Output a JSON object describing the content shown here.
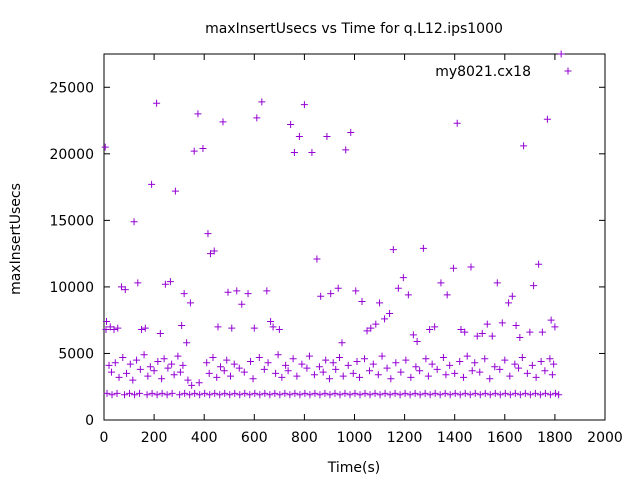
{
  "chart_data": {
    "type": "scatter",
    "title": "maxInsertUsecs vs Time for q.L12.ips1000",
    "xlabel": "Time(s)",
    "ylabel": "maxInsertUsecs",
    "xlim": [
      0,
      2000
    ],
    "ylim": [
      0,
      27500
    ],
    "xticks": [
      0,
      200,
      400,
      600,
      800,
      1000,
      1200,
      1400,
      1600,
      1800,
      2000
    ],
    "yticks": [
      0,
      5000,
      10000,
      15000,
      20000,
      25000
    ],
    "grid": false,
    "legend_position": "top-right",
    "marker": "plus",
    "series": [
      {
        "name": "my8021.cx18",
        "color": "#9400d3",
        "points": [
          [
            5,
            20500
          ],
          [
            10,
            7400
          ],
          [
            8,
            6800
          ],
          [
            25,
            7000
          ],
          [
            40,
            6800
          ],
          [
            55,
            6900
          ],
          [
            70,
            10000
          ],
          [
            85,
            9800
          ],
          [
            120,
            14900
          ],
          [
            135,
            10300
          ],
          [
            150,
            6800
          ],
          [
            165,
            6900
          ],
          [
            190,
            17700
          ],
          [
            210,
            23800
          ],
          [
            225,
            6500
          ],
          [
            245,
            10200
          ],
          [
            265,
            10400
          ],
          [
            285,
            17200
          ],
          [
            310,
            7100
          ],
          [
            320,
            9500
          ],
          [
            330,
            5800
          ],
          [
            345,
            8800
          ],
          [
            360,
            20200
          ],
          [
            375,
            23000
          ],
          [
            395,
            20400
          ],
          [
            415,
            14000
          ],
          [
            425,
            12500
          ],
          [
            440,
            12700
          ],
          [
            455,
            7000
          ],
          [
            475,
            22400
          ],
          [
            495,
            9600
          ],
          [
            510,
            6900
          ],
          [
            530,
            9700
          ],
          [
            550,
            8700
          ],
          [
            575,
            9500
          ],
          [
            600,
            6900
          ],
          [
            610,
            22700
          ],
          [
            630,
            23900
          ],
          [
            650,
            9700
          ],
          [
            665,
            7400
          ],
          [
            675,
            7000
          ],
          [
            700,
            6800
          ],
          [
            745,
            22200
          ],
          [
            760,
            20100
          ],
          [
            780,
            21300
          ],
          [
            800,
            23700
          ],
          [
            830,
            20100
          ],
          [
            850,
            12100
          ],
          [
            865,
            9300
          ],
          [
            890,
            21300
          ],
          [
            905,
            9500
          ],
          [
            935,
            9900
          ],
          [
            950,
            5800
          ],
          [
            965,
            20300
          ],
          [
            985,
            21600
          ],
          [
            1005,
            9700
          ],
          [
            1030,
            8900
          ],
          [
            1050,
            6700
          ],
          [
            1065,
            6900
          ],
          [
            1085,
            7200
          ],
          [
            1100,
            8800
          ],
          [
            1120,
            7600
          ],
          [
            1140,
            8000
          ],
          [
            1155,
            12800
          ],
          [
            1175,
            9900
          ],
          [
            1195,
            10700
          ],
          [
            1215,
            9400
          ],
          [
            1235,
            6400
          ],
          [
            1250,
            5900
          ],
          [
            1275,
            12900
          ],
          [
            1300,
            6800
          ],
          [
            1320,
            7000
          ],
          [
            1345,
            10300
          ],
          [
            1370,
            9400
          ],
          [
            1395,
            11400
          ],
          [
            1410,
            22300
          ],
          [
            1425,
            6800
          ],
          [
            1440,
            6600
          ],
          [
            1465,
            11500
          ],
          [
            1490,
            6300
          ],
          [
            1510,
            6500
          ],
          [
            1530,
            7200
          ],
          [
            1550,
            6300
          ],
          [
            1570,
            10300
          ],
          [
            1590,
            7300
          ],
          [
            1615,
            8800
          ],
          [
            1630,
            9300
          ],
          [
            1645,
            7100
          ],
          [
            1660,
            6200
          ],
          [
            1675,
            20600
          ],
          [
            1700,
            6600
          ],
          [
            1715,
            10100
          ],
          [
            1735,
            11700
          ],
          [
            1750,
            6600
          ],
          [
            1770,
            22600
          ],
          [
            1785,
            7500
          ],
          [
            1800,
            7000
          ],
          [
            1825,
            27500
          ],
          [
            20,
            4100
          ],
          [
            30,
            3600
          ],
          [
            45,
            4300
          ],
          [
            60,
            3200
          ],
          [
            75,
            4700
          ],
          [
            90,
            3500
          ],
          [
            105,
            4200
          ],
          [
            115,
            3000
          ],
          [
            130,
            4500
          ],
          [
            145,
            3800
          ],
          [
            160,
            4900
          ],
          [
            175,
            3300
          ],
          [
            185,
            4000
          ],
          [
            200,
            3700
          ],
          [
            215,
            4400
          ],
          [
            230,
            3100
          ],
          [
            240,
            4600
          ],
          [
            255,
            3900
          ],
          [
            270,
            4200
          ],
          [
            280,
            3400
          ],
          [
            295,
            4800
          ],
          [
            305,
            3600
          ],
          [
            315,
            4100
          ],
          [
            335,
            3000
          ],
          [
            350,
            2600
          ],
          [
            380,
            2800
          ],
          [
            410,
            4300
          ],
          [
            420,
            3500
          ],
          [
            435,
            4700
          ],
          [
            450,
            3200
          ],
          [
            465,
            4000
          ],
          [
            480,
            3700
          ],
          [
            490,
            4500
          ],
          [
            505,
            3300
          ],
          [
            520,
            4200
          ],
          [
            540,
            3900
          ],
          [
            560,
            3600
          ],
          [
            585,
            4400
          ],
          [
            595,
            3100
          ],
          [
            620,
            4700
          ],
          [
            640,
            3800
          ],
          [
            655,
            4300
          ],
          [
            685,
            3500
          ],
          [
            695,
            4900
          ],
          [
            710,
            3200
          ],
          [
            725,
            4100
          ],
          [
            735,
            3700
          ],
          [
            755,
            4600
          ],
          [
            770,
            3300
          ],
          [
            790,
            4200
          ],
          [
            810,
            3900
          ],
          [
            820,
            4800
          ],
          [
            840,
            3400
          ],
          [
            860,
            4000
          ],
          [
            875,
            3600
          ],
          [
            885,
            4500
          ],
          [
            900,
            3100
          ],
          [
            915,
            4300
          ],
          [
            925,
            3800
          ],
          [
            940,
            4700
          ],
          [
            955,
            3300
          ],
          [
            975,
            4100
          ],
          [
            995,
            3500
          ],
          [
            1010,
            4400
          ],
          [
            1020,
            3200
          ],
          [
            1040,
            4600
          ],
          [
            1060,
            3700
          ],
          [
            1075,
            4200
          ],
          [
            1095,
            3400
          ],
          [
            1110,
            4800
          ],
          [
            1130,
            3900
          ],
          [
            1145,
            3100
          ],
          [
            1165,
            4300
          ],
          [
            1185,
            3600
          ],
          [
            1205,
            4500
          ],
          [
            1225,
            3200
          ],
          [
            1245,
            4000
          ],
          [
            1260,
            3700
          ],
          [
            1285,
            4600
          ],
          [
            1295,
            3300
          ],
          [
            1310,
            4200
          ],
          [
            1330,
            3800
          ],
          [
            1355,
            4700
          ],
          [
            1365,
            3400
          ],
          [
            1380,
            4100
          ],
          [
            1400,
            3500
          ],
          [
            1420,
            4400
          ],
          [
            1435,
            3200
          ],
          [
            1450,
            4800
          ],
          [
            1470,
            3700
          ],
          [
            1480,
            4300
          ],
          [
            1500,
            3600
          ],
          [
            1520,
            4600
          ],
          [
            1540,
            3100
          ],
          [
            1560,
            4000
          ],
          [
            1580,
            3800
          ],
          [
            1600,
            4500
          ],
          [
            1620,
            3300
          ],
          [
            1640,
            4200
          ],
          [
            1655,
            3900
          ],
          [
            1670,
            4700
          ],
          [
            1690,
            3500
          ],
          [
            1710,
            4100
          ],
          [
            1725,
            3200
          ],
          [
            1745,
            4400
          ],
          [
            1760,
            3700
          ],
          [
            1780,
            4600
          ],
          [
            1790,
            3400
          ],
          [
            1795,
            4200
          ],
          [
            12,
            2000
          ],
          [
            32,
            1900
          ],
          [
            52,
            2000
          ],
          [
            82,
            1900
          ],
          [
            102,
            2000
          ],
          [
            122,
            1900
          ],
          [
            142,
            2000
          ],
          [
            172,
            1900
          ],
          [
            192,
            2000
          ],
          [
            212,
            1900
          ],
          [
            232,
            2000
          ],
          [
            252,
            1900
          ],
          [
            272,
            2000
          ],
          [
            302,
            1900
          ],
          [
            322,
            2000
          ],
          [
            342,
            1900
          ],
          [
            362,
            2000
          ],
          [
            382,
            1900
          ],
          [
            402,
            2000
          ],
          [
            422,
            1900
          ],
          [
            442,
            2000
          ],
          [
            462,
            1900
          ],
          [
            482,
            2000
          ],
          [
            502,
            1900
          ],
          [
            522,
            2000
          ],
          [
            542,
            1900
          ],
          [
            562,
            2000
          ],
          [
            582,
            1900
          ],
          [
            602,
            2000
          ],
          [
            622,
            1900
          ],
          [
            642,
            2000
          ],
          [
            662,
            1900
          ],
          [
            682,
            2000
          ],
          [
            702,
            1900
          ],
          [
            722,
            2000
          ],
          [
            742,
            1900
          ],
          [
            762,
            2000
          ],
          [
            782,
            1900
          ],
          [
            802,
            2000
          ],
          [
            822,
            1900
          ],
          [
            842,
            2000
          ],
          [
            862,
            1900
          ],
          [
            882,
            2000
          ],
          [
            902,
            1900
          ],
          [
            922,
            2000
          ],
          [
            942,
            1900
          ],
          [
            962,
            2000
          ],
          [
            982,
            1900
          ],
          [
            1002,
            2000
          ],
          [
            1022,
            1900
          ],
          [
            1042,
            2000
          ],
          [
            1062,
            1900
          ],
          [
            1082,
            2000
          ],
          [
            1102,
            1900
          ],
          [
            1122,
            2000
          ],
          [
            1142,
            1900
          ],
          [
            1162,
            2000
          ],
          [
            1182,
            1900
          ],
          [
            1202,
            2000
          ],
          [
            1222,
            1900
          ],
          [
            1242,
            2000
          ],
          [
            1262,
            1900
          ],
          [
            1282,
            2000
          ],
          [
            1302,
            1900
          ],
          [
            1322,
            2000
          ],
          [
            1342,
            1900
          ],
          [
            1362,
            2000
          ],
          [
            1382,
            1900
          ],
          [
            1402,
            2000
          ],
          [
            1422,
            1900
          ],
          [
            1442,
            2000
          ],
          [
            1462,
            1900
          ],
          [
            1482,
            2000
          ],
          [
            1502,
            1900
          ],
          [
            1522,
            2000
          ],
          [
            1542,
            1900
          ],
          [
            1562,
            2000
          ],
          [
            1582,
            1900
          ],
          [
            1602,
            2000
          ],
          [
            1622,
            1900
          ],
          [
            1642,
            2000
          ],
          [
            1662,
            1900
          ],
          [
            1682,
            2000
          ],
          [
            1702,
            1900
          ],
          [
            1722,
            2000
          ],
          [
            1742,
            1900
          ],
          [
            1762,
            2000
          ],
          [
            1782,
            1900
          ],
          [
            1802,
            2000
          ],
          [
            1815,
            1900
          ]
        ]
      }
    ]
  }
}
